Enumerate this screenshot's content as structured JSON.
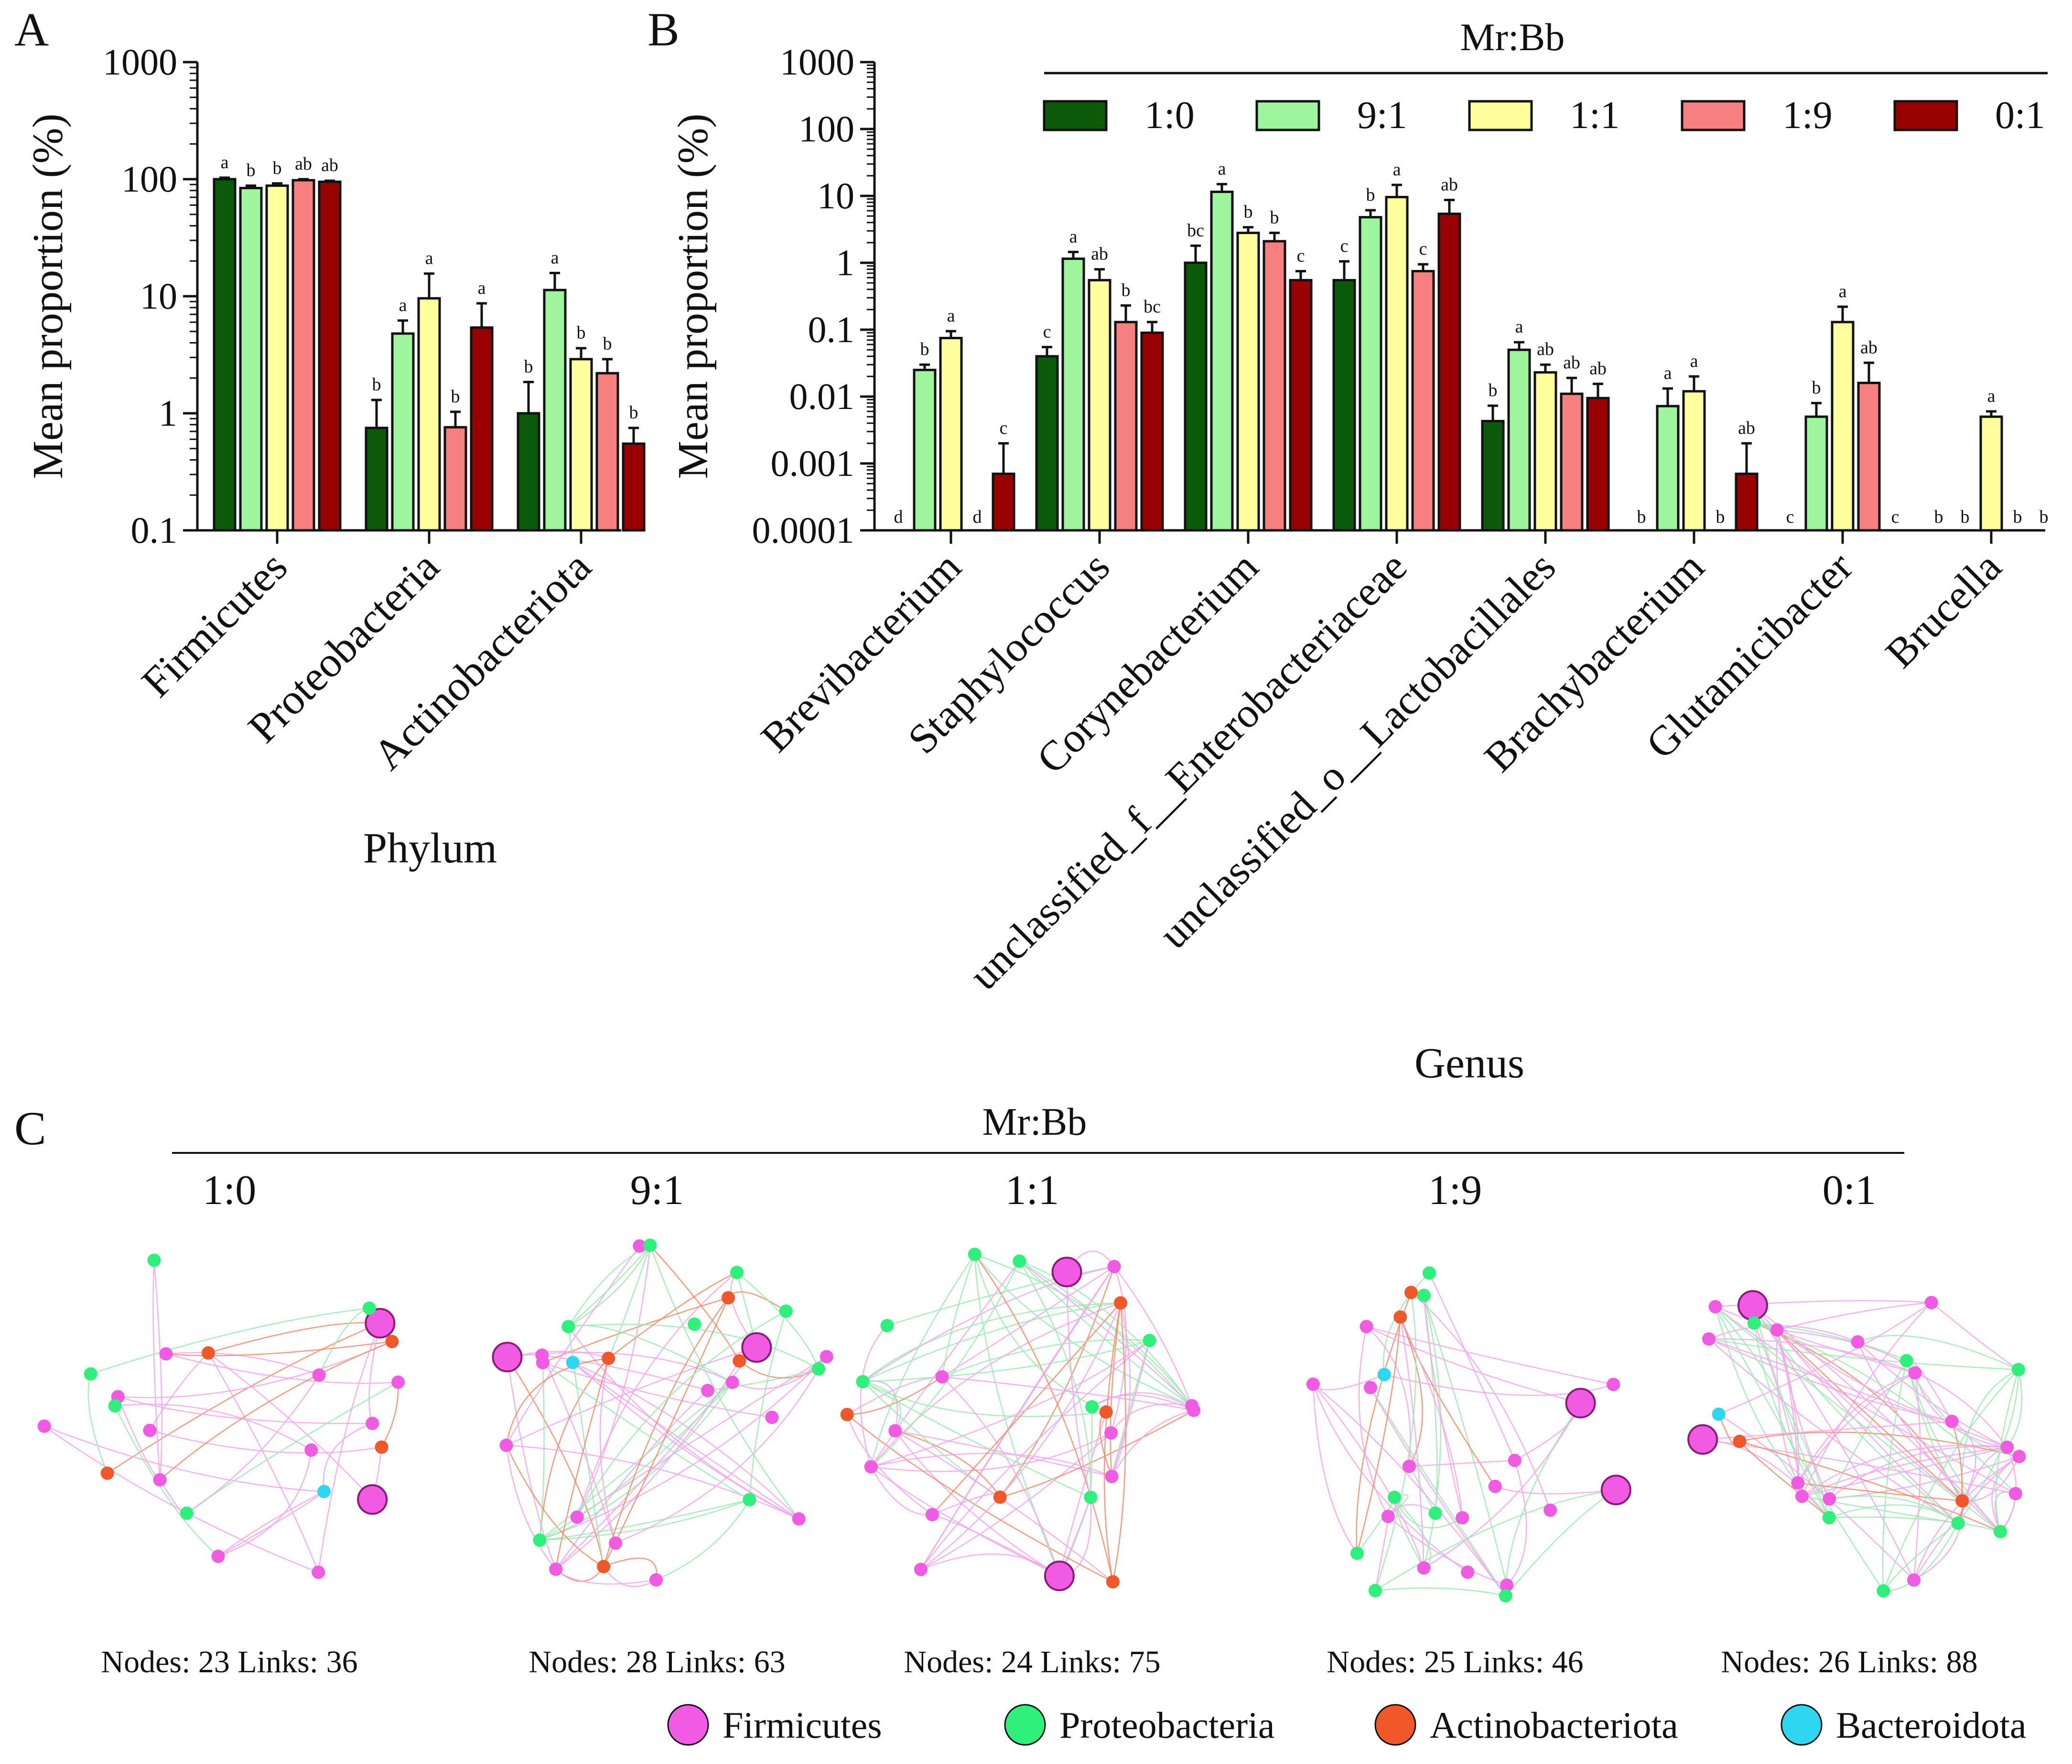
{
  "panel_letters": [
    "A",
    "B",
    "C"
  ],
  "legend": {
    "title": "Mr:Bb",
    "entries": [
      {
        "label": "1:0",
        "color": "#0a5a0a"
      },
      {
        "label": "9:1",
        "color": "#9ef59e"
      },
      {
        "label": "1:1",
        "color": "#ffff9e"
      },
      {
        "label": "1:9",
        "color": "#f68080"
      },
      {
        "label": "0:1",
        "color": "#990000"
      }
    ]
  },
  "chart_data": [
    {
      "type": "bar",
      "panel": "A",
      "scale": "log",
      "xlabel": "Phylum",
      "ylabel": "Mean proportion (%)",
      "ylim": [
        0.1,
        1000
      ],
      "yticks": [
        "0.1",
        "1",
        "10",
        "100",
        "1000"
      ],
      "categories": [
        "Firmicutes",
        "Proteobacteria",
        "Actinobacteriota"
      ],
      "series": [
        {
          "name": "1:0",
          "values": [
            100,
            0.75,
            1.0
          ],
          "errors": [
            3,
            0.55,
            0.85
          ],
          "letters": [
            "a",
            "b",
            "b"
          ]
        },
        {
          "name": "9:1",
          "values": [
            84,
            4.8,
            11.3
          ],
          "errors": [
            4,
            1.4,
            4.5
          ],
          "letters": [
            "b",
            "a",
            "a"
          ]
        },
        {
          "name": "1:1",
          "values": [
            88,
            9.6,
            2.9
          ],
          "errors": [
            4,
            6.0,
            0.7
          ],
          "letters": [
            "b",
            "a",
            "b"
          ]
        },
        {
          "name": "1:9",
          "values": [
            98,
            0.76,
            2.2
          ],
          "errors": [
            2,
            0.27,
            0.7
          ],
          "letters": [
            "ab",
            "b",
            "b"
          ]
        },
        {
          "name": "0:1",
          "values": [
            95,
            5.4,
            0.55
          ],
          "errors": [
            2,
            3.3,
            0.2
          ],
          "letters": [
            "ab",
            "a",
            "b"
          ]
        }
      ]
    },
    {
      "type": "bar",
      "panel": "B",
      "scale": "log",
      "xlabel": "Genus",
      "ylabel": "Mean proportion (%)",
      "ylim": [
        0.0001,
        1000
      ],
      "yticks": [
        "0.0001",
        "0.001",
        "0.01",
        "0.1",
        "1",
        "10",
        "100",
        "1000"
      ],
      "categories": [
        "Brevibacterium",
        "Staphylococcus",
        "Corynebacterium",
        "unclassified_f__Enterobacteriaceae",
        "unclassified_o__Lactobacillales",
        "Brachybacterium",
        "Glutamicibacter",
        "Brucella"
      ],
      "series": [
        {
          "name": "1:0",
          "values": [
            null,
            0.04,
            1.0,
            0.55,
            0.0043,
            null,
            null,
            null
          ],
          "errors": [
            0,
            0.015,
            0.8,
            0.5,
            0.003,
            0,
            0,
            0
          ],
          "letters": [
            "d",
            "c",
            "bc",
            "c",
            "b",
            "b",
            "c",
            "b"
          ]
        },
        {
          "name": "9:1",
          "values": [
            0.025,
            1.15,
            11.5,
            4.8,
            0.05,
            0.0072,
            0.005,
            null
          ],
          "errors": [
            0.005,
            0.3,
            3.5,
            1.3,
            0.015,
            0.006,
            0.003,
            0
          ],
          "letters": [
            "b",
            "a",
            "a",
            "b",
            "a",
            "a",
            "b",
            "b"
          ]
        },
        {
          "name": "1:1",
          "values": [
            0.075,
            0.55,
            2.8,
            9.6,
            0.023,
            0.012,
            0.13,
            0.005
          ],
          "errors": [
            0.02,
            0.25,
            0.6,
            5.0,
            0.007,
            0.008,
            0.09,
            0.001
          ],
          "letters": [
            "a",
            "ab",
            "b",
            "a",
            "ab",
            "a",
            "a",
            "a"
          ]
        },
        {
          "name": "1:9",
          "values": [
            null,
            0.13,
            2.1,
            0.75,
            0.011,
            null,
            0.016,
            null
          ],
          "errors": [
            0,
            0.1,
            0.7,
            0.2,
            0.008,
            0,
            0.016,
            0
          ],
          "letters": [
            "d",
            "b",
            "b",
            "c",
            "ab",
            "b",
            "ab",
            "b"
          ]
        },
        {
          "name": "0:1",
          "values": [
            0.0007,
            0.09,
            0.55,
            5.4,
            0.0095,
            0.0007,
            null,
            null
          ],
          "errors": [
            0.0013,
            0.04,
            0.2,
            3.3,
            0.006,
            0.0013,
            0,
            0
          ],
          "letters": [
            "c",
            "bc",
            "c",
            "ab",
            "ab",
            "ab",
            "c",
            "b"
          ]
        }
      ]
    }
  ],
  "networks": {
    "title": "Mr:Bb",
    "groups": [
      {
        "label": "1:0",
        "stats": "Nodes: 23   Links: 36"
      },
      {
        "label": "9:1",
        "stats": "Nodes: 28   Links: 63"
      },
      {
        "label": "1:1",
        "stats": "Nodes: 24   Links: 75"
      },
      {
        "label": "1:9",
        "stats": "Nodes: 25   Links: 46"
      },
      {
        "label": "0:1",
        "stats": "Nodes: 26   Links: 88"
      }
    ],
    "node_colors": {
      "F": "#f15ae3",
      "P": "#2ef07a",
      "A": "#f0582a",
      "B": "#2ed6f2"
    },
    "legend": [
      {
        "label": "Firmicutes",
        "color": "#f15ae3"
      },
      {
        "label": "Proteobacteria",
        "color": "#2ef07a"
      },
      {
        "label": "Actinobacteriota",
        "color": "#f0582a"
      },
      {
        "label": "Bacteroidota",
        "color": "#2ed6f2"
      }
    ]
  }
}
